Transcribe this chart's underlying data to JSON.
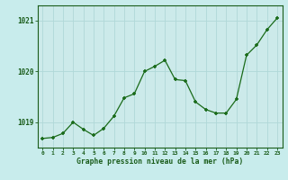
{
  "x": [
    0,
    1,
    2,
    3,
    4,
    5,
    6,
    7,
    8,
    9,
    10,
    11,
    12,
    13,
    14,
    15,
    16,
    17,
    18,
    19,
    20,
    21,
    22,
    23
  ],
  "y": [
    1018.68,
    1018.7,
    1018.78,
    1019.0,
    1018.86,
    1018.74,
    1018.88,
    1019.12,
    1019.48,
    1019.56,
    1020.0,
    1020.1,
    1020.22,
    1019.84,
    1019.82,
    1019.4,
    1019.25,
    1019.18,
    1019.18,
    1019.45,
    1020.32,
    1020.52,
    1020.82,
    1021.05
  ],
  "line_color": "#1a6b1a",
  "marker_color": "#1a6b1a",
  "bg_color": "#c8ecec",
  "grid_color": "#b0d8d8",
  "xlabel": "Graphe pression niveau de la mer (hPa)",
  "xlabel_color": "#1a5c1a",
  "tick_color": "#1a5c1a",
  "ylim": [
    1018.5,
    1021.3
  ],
  "yticks": [
    1019,
    1020,
    1021
  ],
  "xlim": [
    -0.5,
    23.5
  ],
  "plot_bg": "#cceaea"
}
